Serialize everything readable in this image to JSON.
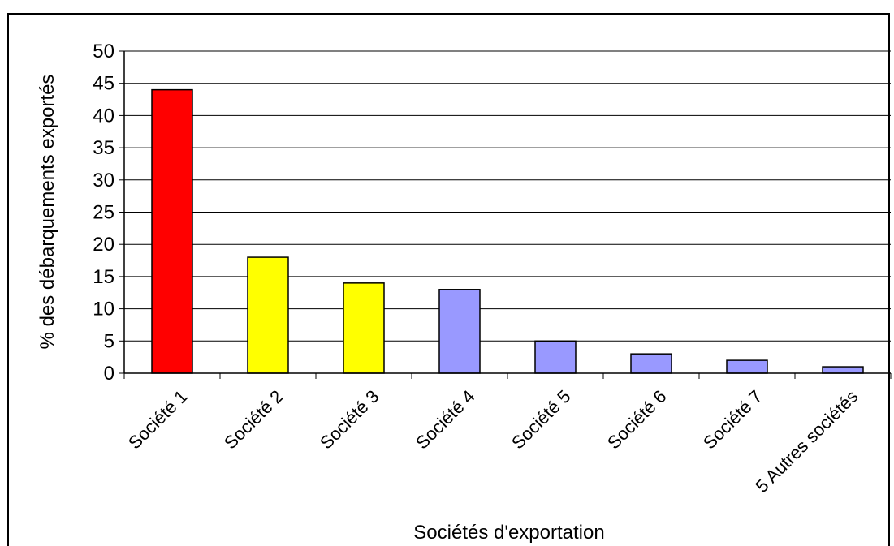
{
  "chart_data": {
    "type": "bar",
    "title": "",
    "xlabel": "Sociétés d'exportation",
    "ylabel": "% des débarquements exportés",
    "ylim": [
      0,
      50
    ],
    "yticks": [
      0,
      5,
      10,
      15,
      20,
      25,
      30,
      35,
      40,
      45,
      50
    ],
    "grid": true,
    "legend": "none",
    "categories": [
      "Société 1",
      "Société 2",
      "Société 3",
      "Société 4",
      "Société 5",
      "Société 6",
      "Société 7",
      "5 Autres sociétés"
    ],
    "values": [
      44,
      18,
      14,
      13,
      5,
      3,
      2,
      1
    ],
    "colors": [
      "#ff0000",
      "#ffff00",
      "#ffff00",
      "#9999ff",
      "#9999ff",
      "#9999ff",
      "#9999ff",
      "#9999ff"
    ]
  }
}
